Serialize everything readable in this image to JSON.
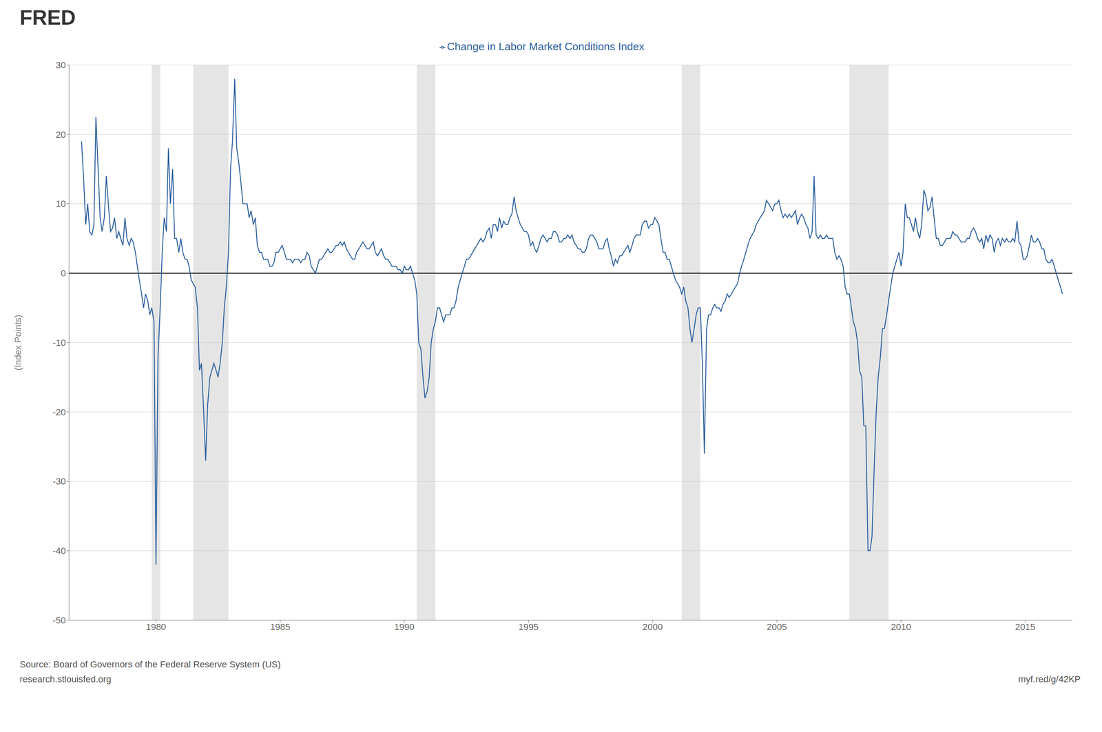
{
  "chart_data": {
    "type": "line",
    "y_label": "(Index Points)",
    "annotations": [
      "FRED",
      "Source: Board of Governors of the Federal Reserve System (US)",
      "research.stlouisfed.org",
      "myf.red/g/42KP"
    ],
    "legend": "top",
    "grid": "y",
    "xlim": [
      1976.5,
      2016.9
    ],
    "xticks": [
      1980,
      1985,
      1990,
      1995,
      2000,
      2005,
      2010,
      2015
    ],
    "ylim": [
      -50,
      30
    ],
    "yticks": [
      -50,
      -40,
      -30,
      -20,
      -10,
      0,
      10,
      20,
      30
    ],
    "hlines": [
      0
    ],
    "recession_bands": [
      [
        1979.83,
        1980.17
      ],
      [
        1981.5,
        1982.92
      ],
      [
        1990.5,
        1991.25
      ],
      [
        2001.17,
        2001.92
      ],
      [
        2007.92,
        2009.5
      ]
    ],
    "x": [
      1977.0,
      1977.08,
      1977.17,
      1977.25,
      1977.33,
      1977.42,
      1977.5,
      1977.58,
      1977.67,
      1977.75,
      1977.83,
      1977.92,
      1978.0,
      1978.08,
      1978.17,
      1978.25,
      1978.33,
      1978.42,
      1978.5,
      1978.58,
      1978.67,
      1978.75,
      1978.83,
      1978.92,
      1979.0,
      1979.08,
      1979.17,
      1979.25,
      1979.33,
      1979.42,
      1979.5,
      1979.58,
      1979.67,
      1979.75,
      1979.83,
      1979.92,
      1980.0,
      1980.08,
      1980.17,
      1980.25,
      1980.33,
      1980.42,
      1980.5,
      1980.58,
      1980.67,
      1980.75,
      1980.83,
      1980.92,
      1981.0,
      1981.08,
      1981.17,
      1981.25,
      1981.33,
      1981.42,
      1981.5,
      1981.58,
      1981.67,
      1981.75,
      1981.83,
      1981.92,
      1982.0,
      1982.08,
      1982.17,
      1982.25,
      1982.33,
      1982.42,
      1982.5,
      1982.58,
      1982.67,
      1982.75,
      1982.83,
      1982.92,
      1983.0,
      1983.08,
      1983.17,
      1983.25,
      1983.33,
      1983.42,
      1983.5,
      1983.58,
      1983.67,
      1983.75,
      1983.83,
      1983.92,
      1984.0,
      1984.08,
      1984.17,
      1984.25,
      1984.33,
      1984.42,
      1984.5,
      1984.58,
      1984.67,
      1984.75,
      1984.83,
      1984.92,
      1985.0,
      1985.08,
      1985.17,
      1985.25,
      1985.33,
      1985.42,
      1985.5,
      1985.58,
      1985.67,
      1985.75,
      1985.83,
      1985.92,
      1986.0,
      1986.08,
      1986.17,
      1986.25,
      1986.33,
      1986.42,
      1986.5,
      1986.58,
      1986.67,
      1986.75,
      1986.83,
      1986.92,
      1987.0,
      1987.08,
      1987.17,
      1987.25,
      1987.33,
      1987.42,
      1987.5,
      1987.58,
      1987.67,
      1987.75,
      1987.83,
      1987.92,
      1988.0,
      1988.08,
      1988.17,
      1988.25,
      1988.33,
      1988.42,
      1988.5,
      1988.58,
      1988.67,
      1988.75,
      1988.83,
      1988.92,
      1989.0,
      1989.08,
      1989.17,
      1989.25,
      1989.33,
      1989.42,
      1989.5,
      1989.58,
      1989.67,
      1989.75,
      1989.83,
      1989.92,
      1990.0,
      1990.08,
      1990.17,
      1990.25,
      1990.33,
      1990.42,
      1990.5,
      1990.58,
      1990.67,
      1990.75,
      1990.83,
      1990.92,
      1991.0,
      1991.08,
      1991.17,
      1991.25,
      1991.33,
      1991.42,
      1991.5,
      1991.58,
      1991.67,
      1991.75,
      1991.83,
      1991.92,
      1992.0,
      1992.08,
      1992.17,
      1992.25,
      1992.33,
      1992.42,
      1992.5,
      1992.58,
      1992.67,
      1992.75,
      1992.83,
      1992.92,
      1993.0,
      1993.08,
      1993.17,
      1993.25,
      1993.33,
      1993.42,
      1993.5,
      1993.58,
      1993.67,
      1993.75,
      1993.83,
      1993.92,
      1994.0,
      1994.08,
      1994.17,
      1994.25,
      1994.33,
      1994.42,
      1994.5,
      1994.58,
      1994.67,
      1994.75,
      1994.83,
      1994.92,
      1995.0,
      1995.08,
      1995.17,
      1995.25,
      1995.33,
      1995.42,
      1995.5,
      1995.58,
      1995.67,
      1995.75,
      1995.83,
      1995.92,
      1996.0,
      1996.08,
      1996.17,
      1996.25,
      1996.33,
      1996.42,
      1996.5,
      1996.58,
      1996.67,
      1996.75,
      1996.83,
      1996.92,
      1997.0,
      1997.08,
      1997.17,
      1997.25,
      1997.33,
      1997.42,
      1997.5,
      1997.58,
      1997.67,
      1997.75,
      1997.83,
      1997.92,
      1998.0,
      1998.08,
      1998.17,
      1998.25,
      1998.33,
      1998.42,
      1998.5,
      1998.58,
      1998.67,
      1998.75,
      1998.83,
      1998.92,
      1999.0,
      1999.08,
      1999.17,
      1999.25,
      1999.33,
      1999.42,
      1999.5,
      1999.58,
      1999.67,
      1999.75,
      1999.83,
      1999.92,
      2000.0,
      2000.08,
      2000.17,
      2000.25,
      2000.33,
      2000.42,
      2000.5,
      2000.58,
      2000.67,
      2000.75,
      2000.83,
      2000.92,
      2001.0,
      2001.08,
      2001.17,
      2001.25,
      2001.33,
      2001.42,
      2001.5,
      2001.58,
      2001.67,
      2001.75,
      2001.83,
      2001.92,
      2002.0,
      2002.08,
      2002.17,
      2002.25,
      2002.33,
      2002.42,
      2002.5,
      2002.58,
      2002.67,
      2002.75,
      2002.83,
      2002.92,
      2003.0,
      2003.08,
      2003.17,
      2003.25,
      2003.33,
      2003.42,
      2003.5,
      2003.58,
      2003.67,
      2003.75,
      2003.83,
      2003.92,
      2004.0,
      2004.08,
      2004.17,
      2004.25,
      2004.33,
      2004.42,
      2004.5,
      2004.58,
      2004.67,
      2004.75,
      2004.83,
      2004.92,
      2005.0,
      2005.08,
      2005.17,
      2005.25,
      2005.33,
      2005.42,
      2005.5,
      2005.58,
      2005.67,
      2005.75,
      2005.83,
      2005.92,
      2006.0,
      2006.08,
      2006.17,
      2006.25,
      2006.33,
      2006.42,
      2006.5,
      2006.58,
      2006.67,
      2006.75,
      2006.83,
      2006.92,
      2007.0,
      2007.08,
      2007.17,
      2007.25,
      2007.33,
      2007.42,
      2007.5,
      2007.58,
      2007.67,
      2007.75,
      2007.83,
      2007.92,
      2008.0,
      2008.08,
      2008.17,
      2008.25,
      2008.33,
      2008.42,
      2008.5,
      2008.58,
      2008.67,
      2008.75,
      2008.83,
      2008.92,
      2009.0,
      2009.08,
      2009.17,
      2009.25,
      2009.33,
      2009.42,
      2009.5,
      2009.58,
      2009.67,
      2009.75,
      2009.83,
      2009.92,
      2010.0,
      2010.08,
      2010.17,
      2010.25,
      2010.33,
      2010.42,
      2010.5,
      2010.58,
      2010.67,
      2010.75,
      2010.83,
      2010.92,
      2011.0,
      2011.08,
      2011.17,
      2011.25,
      2011.33,
      2011.42,
      2011.5,
      2011.58,
      2011.67,
      2011.75,
      2011.83,
      2011.92,
      2012.0,
      2012.08,
      2012.17,
      2012.25,
      2012.33,
      2012.42,
      2012.5,
      2012.58,
      2012.67,
      2012.75,
      2012.83,
      2012.92,
      2013.0,
      2013.08,
      2013.17,
      2013.25,
      2013.33,
      2013.42,
      2013.5,
      2013.58,
      2013.67,
      2013.75,
      2013.83,
      2013.92,
      2014.0,
      2014.08,
      2014.17,
      2014.25,
      2014.33,
      2014.42,
      2014.5,
      2014.58,
      2014.67,
      2014.75,
      2014.83,
      2014.92,
      2015.0,
      2015.08,
      2015.17,
      2015.25,
      2015.33,
      2015.42,
      2015.5,
      2015.58,
      2015.67,
      2015.75,
      2015.83,
      2015.92,
      2016.0,
      2016.08,
      2016.17,
      2016.25,
      2016.33,
      2016.42,
      2016.5
    ],
    "series": [
      {
        "name": "Change in Labor Market Conditions Index",
        "color": "#2b5f9e",
        "values": [
          19.0,
          14.0,
          7.0,
          10.0,
          6.0,
          5.5,
          7.0,
          22.5,
          15.0,
          8.0,
          6.0,
          8.0,
          14.0,
          10.0,
          6.0,
          6.5,
          8.0,
          5.0,
          6.0,
          5.0,
          4.0,
          8.0,
          5.0,
          4.0,
          5.0,
          4.5,
          3.0,
          1.0,
          -1.0,
          -3.0,
          -5.0,
          -3.0,
          -4.0,
          -6.0,
          -5.0,
          -7.0,
          -42.0,
          -12.0,
          -5.0,
          3.0,
          8.0,
          6.0,
          18.0,
          10.0,
          15.0,
          5.0,
          5.0,
          3.0,
          5.0,
          3.0,
          2.0,
          2.0,
          1.0,
          -1.0,
          -1.5,
          -2.0,
          -5.0,
          -14.0,
          -13.0,
          -20.0,
          -27.0,
          -19.0,
          -15.0,
          -14.0,
          -13.0,
          -14.0,
          -15.0,
          -13.0,
          -10.0,
          -5.0,
          -2.0,
          3.0,
          15.0,
          19.0,
          28.0,
          18.0,
          16.0,
          13.0,
          10.0,
          10.0,
          10.0,
          8.0,
          9.0,
          7.0,
          8.0,
          4.0,
          3.0,
          3.0,
          2.0,
          2.0,
          2.0,
          1.0,
          1.0,
          1.5,
          3.0,
          3.0,
          3.5,
          4.0,
          3.0,
          2.0,
          2.0,
          2.0,
          1.5,
          2.0,
          2.0,
          2.0,
          1.5,
          2.0,
          2.0,
          3.0,
          2.5,
          1.0,
          0.5,
          0.0,
          1.0,
          2.0,
          2.0,
          2.5,
          3.0,
          3.5,
          3.0,
          3.0,
          3.5,
          4.0,
          4.0,
          4.5,
          4.0,
          4.5,
          3.5,
          3.0,
          2.5,
          2.0,
          2.0,
          3.0,
          3.5,
          4.0,
          4.5,
          4.0,
          3.5,
          3.5,
          4.0,
          4.5,
          3.0,
          2.5,
          3.0,
          3.5,
          2.5,
          2.0,
          2.0,
          1.5,
          1.0,
          1.0,
          1.0,
          0.5,
          0.5,
          0.0,
          1.0,
          0.5,
          0.5,
          1.0,
          0.0,
          -1.0,
          -3.0,
          -10.0,
          -11.0,
          -15.0,
          -18.0,
          -17.0,
          -15.0,
          -10.0,
          -8.0,
          -7.0,
          -5.0,
          -5.0,
          -6.0,
          -7.0,
          -6.0,
          -6.0,
          -6.0,
          -5.0,
          -5.0,
          -4.0,
          -2.0,
          -1.0,
          0.0,
          1.0,
          2.0,
          2.0,
          2.5,
          3.0,
          3.5,
          4.0,
          4.5,
          5.0,
          4.5,
          5.0,
          6.0,
          6.5,
          5.0,
          7.0,
          7.0,
          6.0,
          8.0,
          6.5,
          7.5,
          7.0,
          7.0,
          8.0,
          8.5,
          11.0,
          9.0,
          8.0,
          7.0,
          6.5,
          6.0,
          6.0,
          5.5,
          4.0,
          4.5,
          3.5,
          3.0,
          4.0,
          5.0,
          5.5,
          5.0,
          4.5,
          5.0,
          5.0,
          6.0,
          6.0,
          5.5,
          4.5,
          4.5,
          5.0,
          5.0,
          5.5,
          5.0,
          5.5,
          4.5,
          4.0,
          3.5,
          3.5,
          3.0,
          3.0,
          3.5,
          5.0,
          5.5,
          5.5,
          5.0,
          4.5,
          3.5,
          3.5,
          3.5,
          4.5,
          5.0,
          3.5,
          2.5,
          1.0,
          2.0,
          1.5,
          2.5,
          2.5,
          3.0,
          3.5,
          4.0,
          3.0,
          4.0,
          5.0,
          5.5,
          5.5,
          5.5,
          7.0,
          7.5,
          7.5,
          6.5,
          7.0,
          7.0,
          8.0,
          7.5,
          7.0,
          5.0,
          3.0,
          3.0,
          2.0,
          2.0,
          1.0,
          0.0,
          -1.0,
          -1.5,
          -2.0,
          -3.0,
          -2.0,
          -4.0,
          -5.0,
          -8.0,
          -10.0,
          -8.0,
          -6.0,
          -5.0,
          -5.0,
          -13.0,
          -26.0,
          -8.0,
          -6.0,
          -6.0,
          -5.0,
          -4.5,
          -5.0,
          -5.0,
          -5.5,
          -4.5,
          -4.0,
          -3.0,
          -3.5,
          -3.0,
          -2.5,
          -2.0,
          -1.5,
          0.0,
          1.0,
          2.0,
          3.0,
          4.0,
          5.0,
          5.5,
          6.0,
          7.0,
          7.5,
          8.0,
          8.5,
          9.0,
          10.5,
          10.0,
          9.5,
          9.0,
          10.0,
          10.0,
          10.5,
          9.0,
          8.0,
          8.5,
          8.0,
          8.5,
          8.0,
          8.5,
          9.0,
          7.0,
          8.0,
          8.5,
          8.0,
          7.0,
          6.5,
          5.0,
          6.0,
          14.0,
          5.5,
          5.0,
          5.5,
          5.0,
          5.0,
          5.5,
          5.0,
          5.0,
          5.0,
          3.0,
          2.0,
          2.5,
          2.0,
          1.0,
          -2.0,
          -3.0,
          -3.0,
          -5.0,
          -7.0,
          -8.0,
          -10.0,
          -14.0,
          -15.0,
          -22.0,
          -22.0,
          -40.0,
          -40.0,
          -38.0,
          -28.0,
          -20.0,
          -15.0,
          -12.0,
          -8.0,
          -8.0,
          -6.0,
          -4.0,
          -2.0,
          0.0,
          1.0,
          2.0,
          3.0,
          1.0,
          3.0,
          10.0,
          8.0,
          8.0,
          7.0,
          6.0,
          8.0,
          6.0,
          5.0,
          7.0,
          12.0,
          11.0,
          9.0,
          9.5,
          11.0,
          8.0,
          5.0,
          5.0,
          4.0,
          4.0,
          4.5,
          5.0,
          5.0,
          5.0,
          6.0,
          5.5,
          5.5,
          5.0,
          4.5,
          4.5,
          4.5,
          5.0,
          5.0,
          6.0,
          6.5,
          6.0,
          5.0,
          4.5,
          5.0,
          3.5,
          5.5,
          4.5,
          5.5,
          5.0,
          3.0,
          4.5,
          5.0,
          4.0,
          5.0,
          4.5,
          5.0,
          4.5,
          4.5,
          5.0,
          4.5,
          7.5,
          4.5,
          4.0,
          2.0,
          2.0,
          2.5,
          4.0,
          5.5,
          4.5,
          4.5,
          5.0,
          4.5,
          3.5,
          3.5,
          2.0,
          1.5,
          1.5,
          2.0,
          1.0,
          0.0,
          -1.0,
          -2.0,
          -3.0
        ]
      }
    ]
  }
}
